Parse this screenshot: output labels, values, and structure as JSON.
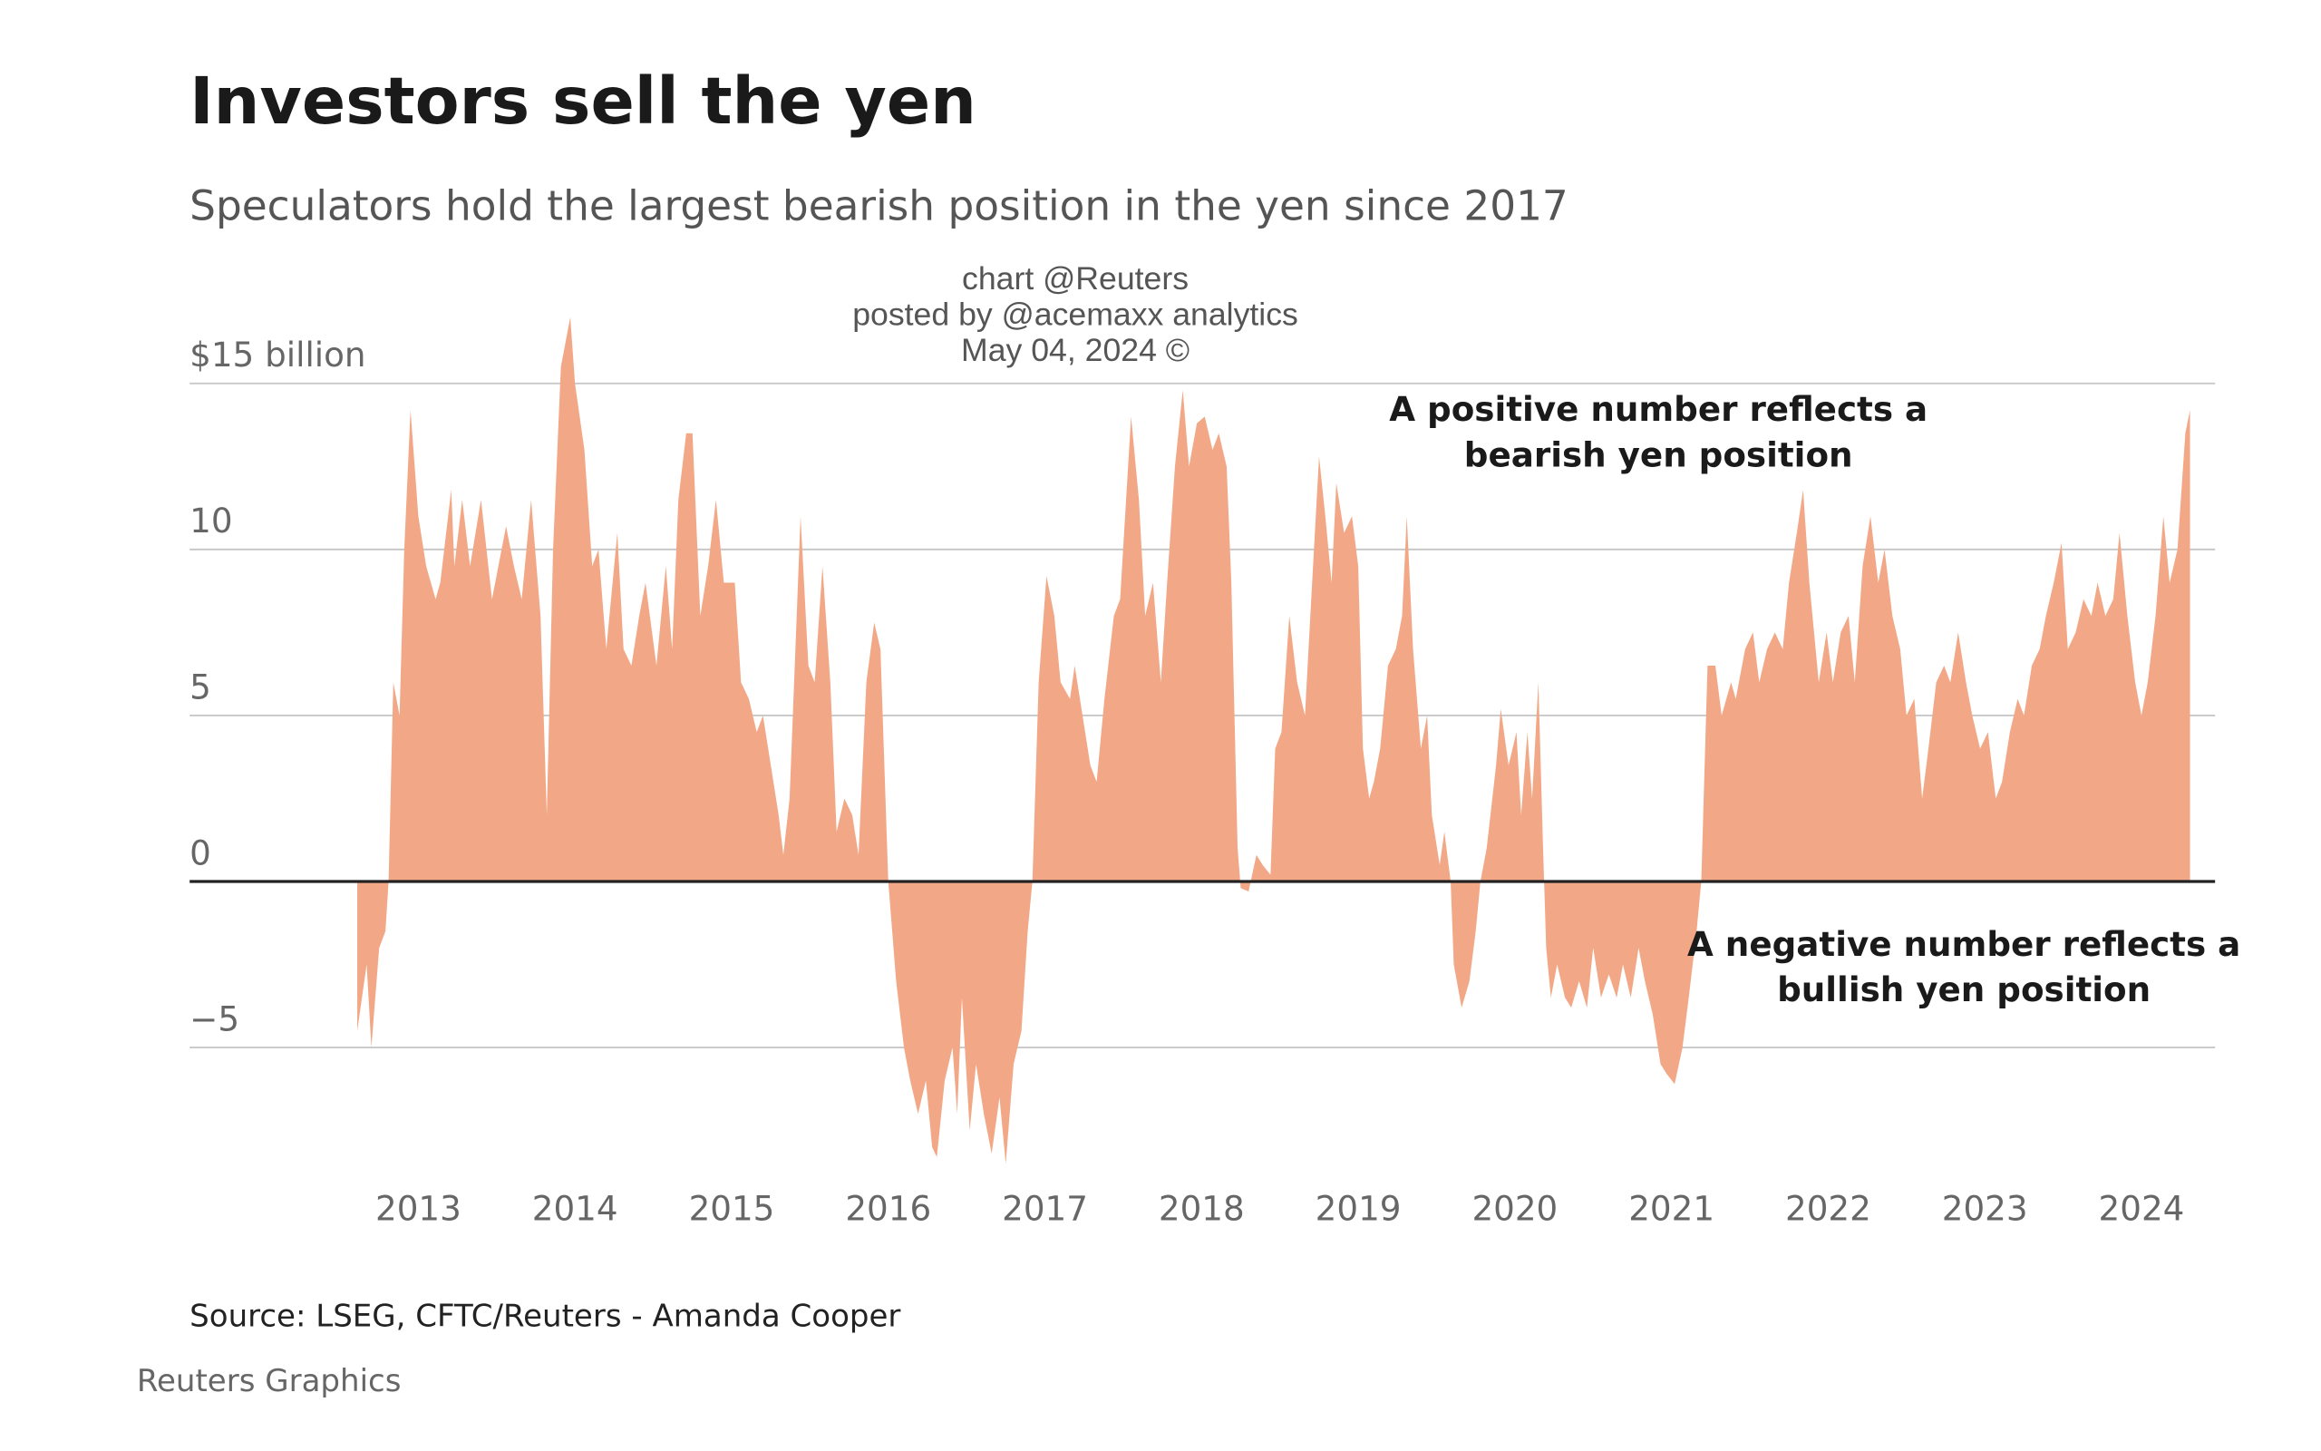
{
  "chart_data": {
    "type": "area",
    "title": "Investors sell the yen",
    "subtitle": "Speculators hold the largest bearish position in the yen since 2017",
    "watermark": [
      "chart @Reuters",
      "posted by @acemaxx analytics",
      "May 04, 2024 ©"
    ],
    "annotations": [
      {
        "lines": [
          "A positive number reflects a",
          "bearish yen position"
        ]
      },
      {
        "lines": [
          "A negative number reflects a",
          "bullish yen position"
        ]
      }
    ],
    "source": "Source: LSEG, CFTC/Reuters - Amanda Cooper",
    "credit": "Reuters Graphics",
    "color": "#f2a886",
    "grid": true,
    "xlim": [
      2011.54,
      2024.47
    ],
    "ylim": [
      -9,
      17.5
    ],
    "xticks": [
      2013,
      2014,
      2015,
      2016,
      2017,
      2018,
      2019,
      2020,
      2021,
      2022,
      2023,
      2024
    ],
    "yticks": [
      {
        "value": 15,
        "label": "$15 billion"
      },
      10,
      5,
      0,
      {
        "value": -5,
        "label": "−5"
      }
    ],
    "x": [
      2012.61,
      2012.67,
      2012.7,
      2012.75,
      2012.79,
      2012.81,
      2012.84,
      2012.88,
      2012.91,
      2012.95,
      2013.0,
      2013.05,
      2013.11,
      2013.14,
      2013.21,
      2013.23,
      2013.28,
      2013.33,
      2013.4,
      2013.47,
      2013.56,
      2013.61,
      2013.66,
      2013.72,
      2013.78,
      2013.82,
      2013.86,
      2013.91,
      2013.97,
      2014.0,
      2014.06,
      2014.11,
      2014.15,
      2014.2,
      2014.27,
      2014.31,
      2014.36,
      2014.41,
      2014.45,
      2014.52,
      2014.58,
      2014.62,
      2014.66,
      2014.71,
      2014.75,
      2014.8,
      2014.85,
      2014.9,
      2014.95,
      2015.02,
      2015.06,
      2015.11,
      2015.16,
      2015.2,
      2015.25,
      2015.3,
      2015.33,
      2015.37,
      2015.44,
      2015.49,
      2015.53,
      2015.58,
      2015.63,
      2015.67,
      2015.72,
      2015.77,
      2015.81,
      2015.86,
      2015.91,
      2015.95,
      2016.0,
      2016.05,
      2016.1,
      2016.14,
      2016.19,
      2016.24,
      2016.28,
      2016.31,
      2016.36,
      2016.41,
      2016.44,
      2016.47,
      2016.52,
      2016.56,
      2016.61,
      2016.66,
      2016.71,
      2016.75,
      2016.8,
      2016.85,
      2016.89,
      2016.92,
      2016.96,
      2017.01,
      2017.06,
      2017.1,
      2017.16,
      2017.19,
      2017.24,
      2017.29,
      2017.33,
      2017.38,
      2017.44,
      2017.48,
      2017.55,
      2017.6,
      2017.64,
      2017.69,
      2017.74,
      2017.78,
      2017.83,
      2017.88,
      2017.92,
      2017.97,
      2018.02,
      2018.07,
      2018.11,
      2018.16,
      2018.19,
      2018.23,
      2018.25,
      2018.3,
      2018.35,
      2018.39,
      2018.44,
      2018.47,
      2018.51,
      2018.56,
      2018.61,
      2018.66,
      2018.7,
      2018.75,
      2018.79,
      2018.83,
      2018.86,
      2018.91,
      2018.96,
      2019.0,
      2019.03,
      2019.07,
      2019.1,
      2019.14,
      2019.19,
      2019.24,
      2019.28,
      2019.31,
      2019.35,
      2019.4,
      2019.44,
      2019.47,
      2019.52,
      2019.55,
      2019.59,
      2019.61,
      2019.66,
      2019.71,
      2019.75,
      2019.78,
      2019.82,
      2019.88,
      2019.91,
      2019.96,
      2020.01,
      2020.04,
      2020.08,
      2020.11,
      2020.15,
      2020.18,
      2020.2,
      2020.23,
      2020.27,
      2020.32,
      2020.36,
      2020.41,
      2020.46,
      2020.5,
      2020.55,
      2020.6,
      2020.65,
      2020.69,
      2020.74,
      2020.79,
      2020.83,
      2020.88,
      2020.93,
      2020.97,
      2021.02,
      2021.07,
      2021.11,
      2021.16,
      2021.19,
      2021.23,
      2021.28,
      2021.32,
      2021.38,
      2021.41,
      2021.47,
      2021.52,
      2021.56,
      2021.61,
      2021.66,
      2021.71,
      2021.75,
      2021.8,
      2021.84,
      2021.88,
      2021.94,
      2021.99,
      2022.03,
      2022.08,
      2022.13,
      2022.17,
      2022.22,
      2022.27,
      2022.32,
      2022.36,
      2022.41,
      2022.46,
      2022.5,
      2022.55,
      2022.6,
      2022.64,
      2022.69,
      2022.74,
      2022.78,
      2022.83,
      2022.88,
      2022.92,
      2022.97,
      2023.02,
      2023.07,
      2023.11,
      2023.16,
      2023.21,
      2023.25,
      2023.3,
      2023.35,
      2023.39,
      2023.44,
      2023.49,
      2023.53,
      2023.58,
      2023.63,
      2023.68,
      2023.72,
      2023.77,
      2023.82,
      2023.86,
      2023.91,
      2023.96,
      2024.0,
      2024.04,
      2024.09,
      2024.14,
      2024.18,
      2024.23,
      2024.28,
      2024.31
    ],
    "values": [
      -4.5,
      -2.5,
      -5,
      -2,
      -1.5,
      0,
      6,
      5,
      10,
      14.2,
      11,
      9.5,
      8.5,
      9,
      11.8,
      9.5,
      11.5,
      9.5,
      11.5,
      8.5,
      10.7,
      9.5,
      8.5,
      11.5,
      8,
      2,
      10,
      15.5,
      17,
      15,
      13,
      9.5,
      10,
      7,
      10.5,
      7,
      6.5,
      8,
      9,
      6.5,
      9.5,
      7,
      11.5,
      13.5,
      13.5,
      8,
      9.5,
      11.5,
      9,
      9,
      6,
      5.5,
      4.5,
      5,
      3.5,
      2,
      0.8,
      2.5,
      11,
      6.5,
      6,
      9.5,
      6,
      1.5,
      2.5,
      2,
      0.8,
      6,
      7.8,
      7,
      0,
      -3,
      -5,
      -6,
      -7,
      -6,
      -8,
      -8.3,
      -6,
      -5,
      -7,
      -3.5,
      -7.5,
      -5.5,
      -7,
      -8.2,
      -6.5,
      -8.5,
      -5.5,
      -4.5,
      -1.5,
      0,
      6,
      9.2,
      8,
      6,
      5.5,
      6.5,
      5,
      3.5,
      3,
      5.5,
      8,
      8.5,
      14,
      11.5,
      8,
      9,
      6,
      9,
      12.5,
      14.8,
      12.5,
      13.8,
      14,
      13,
      13.5,
      12.5,
      9,
      1,
      -0.2,
      -0.3,
      0.8,
      0.5,
      0.2,
      4,
      4.5,
      8,
      6,
      5,
      8.5,
      12.8,
      11,
      9,
      12,
      10.5,
      11,
      9.5,
      4,
      2.5,
      3,
      4,
      6.5,
      7,
      8,
      11,
      7,
      4,
      5,
      2,
      0.5,
      1.5,
      0,
      -2.5,
      -3.8,
      -3,
      -1.5,
      0,
      1,
      3.5,
      5.2,
      3.5,
      4.5,
      2,
      4.5,
      2.5,
      6,
      1,
      -2,
      -3.5,
      -2.5,
      -3.5,
      -3.8,
      -3,
      -3.8,
      -2,
      -3.5,
      -2.8,
      -3.5,
      -2.5,
      -3.5,
      -2,
      -3,
      -4,
      -5.5,
      -5.8,
      -6.1,
      -5,
      -3.5,
      -1.5,
      0,
      6.5,
      6.5,
      5,
      6,
      5.5,
      7,
      7.5,
      6,
      7,
      7.5,
      7,
      9,
      10.5,
      11.8,
      9,
      6,
      7.5,
      6,
      7.5,
      8,
      6,
      9.5,
      11,
      9,
      10,
      8,
      7,
      5,
      5.5,
      2.5,
      4,
      6,
      6.5,
      6,
      7.5,
      6,
      5,
      4,
      4.5,
      2.5,
      3,
      4.5,
      5.5,
      5,
      6.5,
      7,
      8,
      9,
      10.2,
      7,
      7.5,
      8.5,
      8,
      9,
      8,
      8.5,
      10.5,
      8,
      6,
      5,
      6,
      8,
      11,
      9,
      10,
      13.5,
      14.2
    ]
  }
}
